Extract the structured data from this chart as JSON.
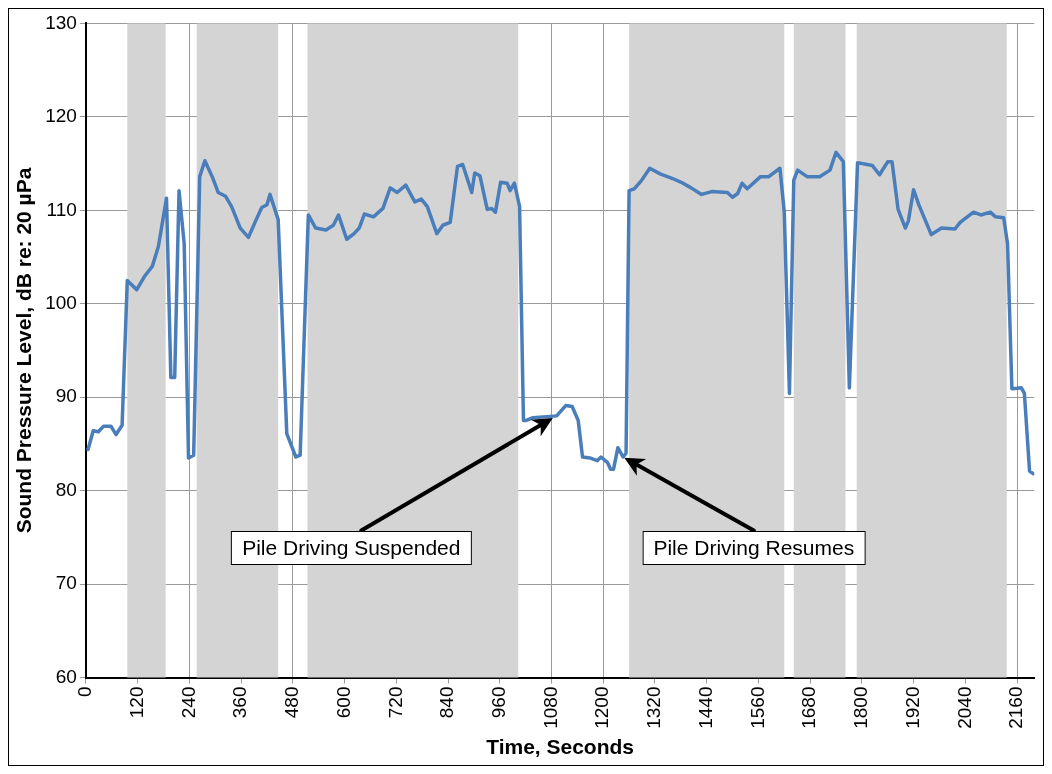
{
  "chart_data": {
    "type": "line",
    "xlabel": "Time, Seconds",
    "ylabel": "Sound Pressure Level, dB re: 20 µPa",
    "xlim": [
      0,
      2200
    ],
    "xticks": [
      0,
      120,
      240,
      360,
      480,
      600,
      720,
      840,
      960,
      1080,
      1200,
      1320,
      1440,
      1560,
      1680,
      1800,
      1920,
      2040,
      2160
    ],
    "ylim": [
      60,
      130
    ],
    "yticks": [
      60,
      70,
      80,
      90,
      100,
      110,
      120,
      130
    ],
    "grid": true,
    "legend": false,
    "marker": "none",
    "line_style": "solid",
    "series": [
      {
        "color": "#4a7ebb",
        "x": [
          5,
          17,
          29,
          41,
          58,
          70,
          84,
          96,
          118,
          137,
          154,
          168,
          187,
          197,
          206,
          216,
          228,
          238,
          250,
          264,
          276,
          293,
          307,
          324,
          338,
          358,
          377,
          394,
          408,
          420,
          427,
          446,
          466,
          487,
          497,
          516,
          533,
          557,
          574,
          586,
          605,
          622,
          634,
          646,
          667,
          689,
          706,
          722,
          742,
          763,
          778,
          792,
          814,
          828,
          845,
          862,
          874,
          895,
          902,
          914,
          931,
          941,
          950,
          962,
          977,
          984,
          994,
          1006,
          1015,
          1020,
          1037,
          1092,
          1113,
          1128,
          1142,
          1152,
          1169,
          1186,
          1195,
          1210,
          1217,
          1224,
          1234,
          1246,
          1253,
          1260,
          1272,
          1289,
          1308,
          1332,
          1361,
          1385,
          1404,
          1428,
          1452,
          1488,
          1500,
          1512,
          1522,
          1534,
          1565,
          1584,
          1610,
          1620,
          1632,
          1642,
          1651,
          1673,
          1702,
          1726,
          1740,
          1757,
          1771,
          1790,
          1824,
          1841,
          1860,
          1870,
          1884,
          1901,
          1908,
          1920,
          1932,
          1961,
          1985,
          2016,
          2028,
          2059,
          2076,
          2098,
          2110,
          2129,
          2138,
          2148,
          2170,
          2177,
          2189,
          2198
        ],
        "values": [
          84.4,
          86.4,
          86.3,
          86.9,
          86.9,
          86.0,
          87.0,
          102.5,
          101.5,
          103.0,
          104.0,
          106.1,
          111.3,
          92.1,
          92.1,
          112.1,
          106.4,
          83.5,
          83.8,
          113.6,
          115.3,
          113.6,
          111.9,
          111.5,
          110.4,
          108.1,
          107.1,
          108.9,
          110.3,
          110.6,
          111.7,
          109.0,
          86.1,
          83.6,
          83.8,
          109.5,
          108.1,
          107.9,
          108.4,
          109.5,
          106.9,
          107.5,
          108.1,
          109.6,
          109.3,
          110.2,
          112.4,
          111.9,
          112.7,
          110.9,
          111.2,
          110.4,
          107.5,
          108.4,
          108.7,
          114.7,
          114.9,
          111.9,
          114.0,
          113.7,
          110.1,
          110.2,
          109.8,
          113.0,
          112.9,
          112.1,
          112.9,
          110.4,
          87.5,
          87.5,
          87.8,
          88.0,
          89.1,
          89.0,
          87.5,
          83.6,
          83.5,
          83.2,
          83.6,
          83.0,
          82.3,
          82.3,
          84.6,
          83.6,
          84.0,
          112.1,
          112.3,
          113.2,
          114.5,
          113.9,
          113.4,
          112.9,
          112.4,
          111.7,
          112.0,
          111.9,
          111.4,
          111.8,
          112.9,
          112.3,
          113.6,
          113.6,
          114.5,
          109.8,
          90.4,
          113.2,
          114.3,
          113.6,
          113.6,
          114.3,
          116.2,
          115.2,
          91.0,
          115.1,
          114.8,
          113.8,
          115.2,
          115.2,
          110.1,
          108.1,
          108.9,
          112.2,
          110.6,
          107.4,
          108.1,
          108.0,
          108.7,
          109.8,
          109.5,
          109.8,
          109.3,
          109.2,
          106.4,
          90.9,
          91.0,
          90.4,
          82.1,
          81.8
        ]
      }
    ],
    "bands": [
      {
        "axis": "x",
        "from": 96,
        "to": 185,
        "label": null,
        "color": "#d4d4d4"
      },
      {
        "axis": "x",
        "from": 257,
        "to": 446,
        "label": null,
        "color": "#d4d4d4"
      },
      {
        "axis": "x",
        "from": 514,
        "to": 1003,
        "label": null,
        "color": "#d4d4d4"
      },
      {
        "axis": "x",
        "from": 1260,
        "to": 1620,
        "label": null,
        "color": "#d4d4d4"
      },
      {
        "axis": "x",
        "from": 1642,
        "to": 1762,
        "label": null,
        "color": "#d4d4d4"
      },
      {
        "axis": "x",
        "from": 1788,
        "to": 2136,
        "label": null,
        "color": "#d4d4d4"
      }
    ],
    "annotations": [
      "Pile Driving Suspended",
      "Pile Driving Resumes"
    ]
  }
}
